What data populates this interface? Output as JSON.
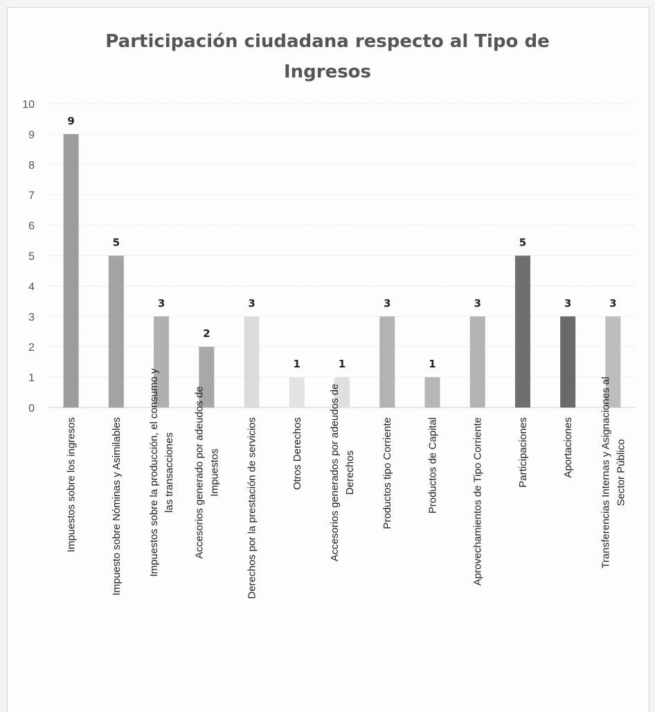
{
  "chart_data": {
    "type": "bar",
    "title": "Participación ciudadana respecto al Tipo de Ingresos",
    "xlabel": "",
    "ylabel": "",
    "ylim": [
      0,
      10
    ],
    "yticks": [
      0,
      1,
      2,
      3,
      4,
      5,
      6,
      7,
      8,
      9,
      10
    ],
    "grid": true,
    "legend": "none",
    "categories": [
      "Impuestos sobre los ingresos",
      "Impuesto sobre Nóminas y Asimilables",
      "Impuestos sobre la producción, el consumo y las transacciones",
      "Accesorios generado por adeudos de Impuestos",
      "Derechos por la prestación de servicios",
      "Otros Derechos",
      "Accesorios generados por adeudos de Derechos",
      "Productos tipo Corriente",
      "Productos de Capital",
      "Aprovechamientos de Tipo Corriente",
      "Participaciones",
      "Aportaciones",
      "Transferencias Internas y Asignaciones al Sector Público"
    ],
    "category_label_lines": [
      [
        "Impuestos sobre los ingresos"
      ],
      [
        "Impuesto sobre Nóminas y Asimilables"
      ],
      [
        "Impuestos sobre la producción, el consumo y",
        "las transacciones"
      ],
      [
        "Accesorios generado por adeudos de",
        "Impuestos"
      ],
      [
        "Derechos por la prestación de servicios"
      ],
      [
        "Otros Derechos"
      ],
      [
        "Accesorios generados por adeudos de",
        "Derechos"
      ],
      [
        "Productos tipo Corriente"
      ],
      [
        "Productos de Capital"
      ],
      [
        "Aprovechamientos de Tipo Corriente"
      ],
      [
        "Participaciones"
      ],
      [
        "Aportaciones"
      ],
      [
        "Transferencias Internas y Asignaciones al",
        "Sector Público"
      ]
    ],
    "values": [
      9,
      5,
      3,
      2,
      3,
      1,
      1,
      3,
      1,
      3,
      5,
      3,
      3
    ],
    "colors": [
      "#9c9c9c",
      "#a3a3a3",
      "#b0b0b0",
      "#a8a8a8",
      "#dcdcdc",
      "#e3e3e3",
      "#e0e0e0",
      "#b3b3b3",
      "#b6b6b6",
      "#b3b3b3",
      "#6f6f6f",
      "#6a6a6a",
      "#bdbdbd"
    ]
  }
}
